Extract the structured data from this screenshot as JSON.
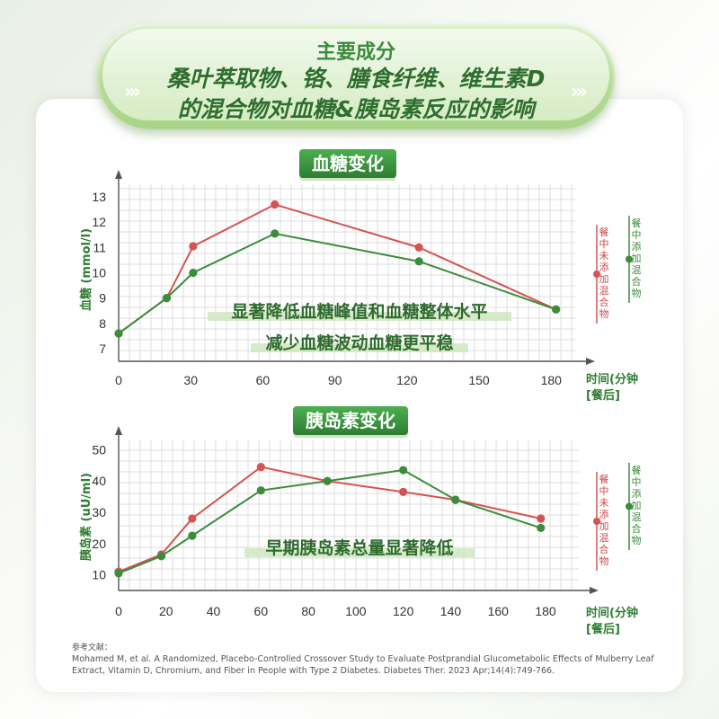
{
  "banner": {
    "line1": "主要成分",
    "line2": "桑叶萃取物、铬、膳食纤维、维生素D",
    "line3": "的混合物对血糖&胰岛素反应的影响",
    "chevrons": "›››"
  },
  "colors": {
    "red": "#d45454",
    "green": "#3c8c3c",
    "grid": "#d4d4d4"
  },
  "chart_data": [
    {
      "type": "line",
      "title": "血糖变化",
      "ylabel": "血糖 (mmol/l)",
      "xlabel": "时间(分钟",
      "xlabel2": "[餐后]",
      "xticks": [
        0,
        30,
        60,
        90,
        120,
        150,
        180
      ],
      "yticks": [
        7,
        8,
        9,
        10,
        11,
        12,
        13
      ],
      "xlim": [
        0,
        190
      ],
      "ylim": [
        6.5,
        13.5
      ],
      "series": [
        {
          "name": "餐中未添加混合物",
          "color": "#d45454",
          "x": [
            0,
            20,
            31,
            65,
            125,
            182
          ],
          "y": [
            7.6,
            9.0,
            11.05,
            12.7,
            11.0,
            8.55
          ]
        },
        {
          "name": "餐中添加混合物",
          "color": "#3c8c3c",
          "x": [
            0,
            20,
            31,
            65,
            125,
            182
          ],
          "y": [
            7.6,
            9.0,
            10.0,
            11.55,
            10.45,
            8.55
          ]
        }
      ],
      "annotations": [
        "显著降低血糖峰值和血糖整体水平",
        "减少血糖波动血糖更平稳"
      ]
    },
    {
      "type": "line",
      "title": "胰岛素变化",
      "ylabel": "胰岛素 (uU/ml)",
      "xlabel": "时间(分钟",
      "xlabel2": "[餐后]",
      "xticks": [
        0,
        20,
        40,
        60,
        80,
        100,
        120,
        140,
        160,
        180
      ],
      "yticks": [
        10,
        20,
        30,
        40,
        50
      ],
      "xlim": [
        0,
        194
      ],
      "ylim": [
        5,
        53
      ],
      "series": [
        {
          "name": "餐中未添加混合物",
          "color": "#d45454",
          "x": [
            0,
            18,
            31,
            60,
            88,
            120,
            142,
            178
          ],
          "y": [
            11.0,
            16.5,
            28.0,
            44.5,
            40.0,
            36.5,
            34.0,
            28.0
          ]
        },
        {
          "name": "餐中添加混合物",
          "color": "#3c8c3c",
          "x": [
            0,
            18,
            31,
            60,
            88,
            120,
            142,
            178
          ],
          "y": [
            10.5,
            16.0,
            22.5,
            37.0,
            40.0,
            43.5,
            34.0,
            25.0
          ]
        }
      ],
      "annotations": [
        "早期胰岛素总量显著降低"
      ]
    }
  ],
  "reference": {
    "label": "参考文献：",
    "text": "Mohamed M, et al. A Randomized, Placebo-Controlled Crossover Study to Evaluate Postprandial Glucometabolic Effects of Mulberry Leaf Extract, Vitamin D, Chromium, and Fiber in People with Type 2 Diabetes. Diabetes Ther. 2023 Apr;14(4):749-766."
  }
}
